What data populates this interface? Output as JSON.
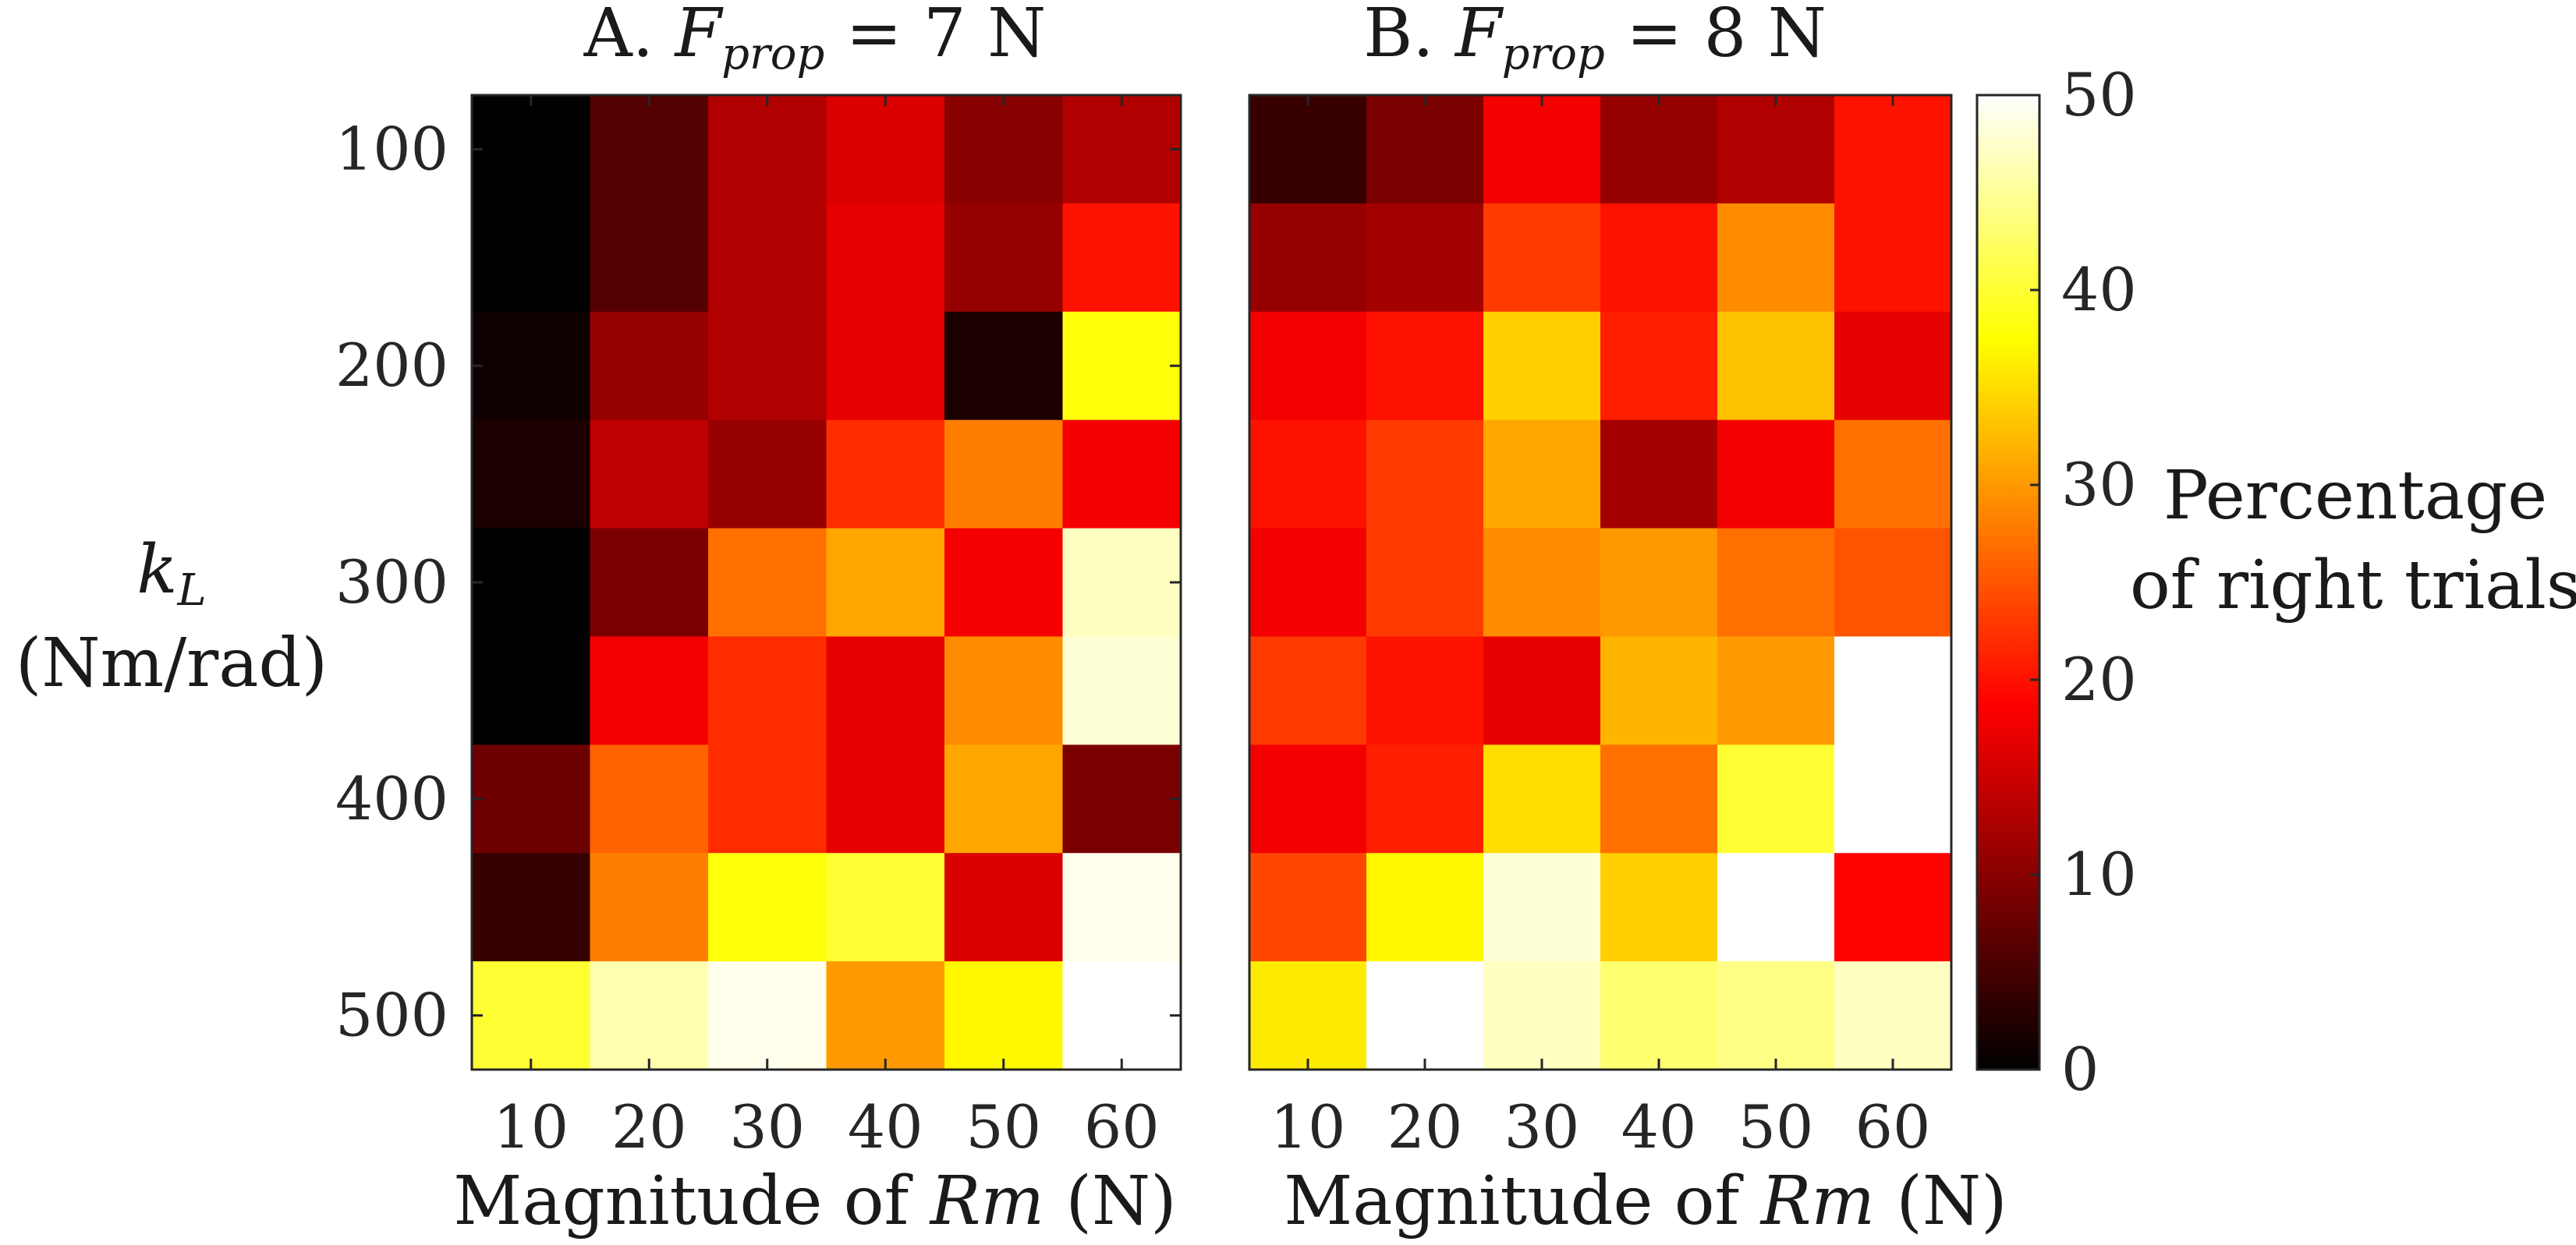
{
  "chart_data": {
    "type": "heatmap",
    "colormap": "hot",
    "colorbar": {
      "min": 0,
      "max": 50,
      "ticks": [
        0,
        10,
        20,
        30,
        40,
        50
      ],
      "label_line1": "Percentage",
      "label_line2": "of right trials"
    },
    "ylabel_symbol": "k",
    "ylabel_subscript": "L",
    "ylabel_unit": "(Nm/rad)",
    "y_categories": [
      100,
      150,
      200,
      250,
      300,
      350,
      400,
      450,
      500
    ],
    "y_tick_labels": [
      "100",
      "200",
      "300",
      "400",
      "500"
    ],
    "y_tick_rows": [
      0,
      2,
      4,
      6,
      8
    ],
    "x_categories": [
      "10",
      "20",
      "30",
      "40",
      "50",
      "60"
    ],
    "panels": [
      {
        "title_prefix": "A.",
        "title_symbol": "F",
        "title_subscript": "prop",
        "title_value": "= 7 N",
        "xlabel_text": "Magnitude of",
        "xlabel_symbol": "Rm",
        "xlabel_unit": "(N)",
        "values": [
          [
            0,
            6,
            13,
            16,
            10,
            13
          ],
          [
            0,
            6,
            13,
            17,
            11,
            20
          ],
          [
            1,
            11,
            13,
            17,
            2,
            38
          ],
          [
            2,
            14,
            11,
            22,
            28,
            18
          ],
          [
            0,
            9,
            27,
            31,
            18,
            47
          ],
          [
            0,
            18,
            22,
            17,
            29,
            48
          ],
          [
            8,
            26,
            22,
            17,
            31,
            9
          ],
          [
            4,
            28,
            38,
            40,
            16,
            49
          ],
          [
            40,
            46,
            49,
            30,
            37,
            50
          ]
        ]
      },
      {
        "title_prefix": "B.",
        "title_symbol": "F",
        "title_subscript": "prop",
        "title_value": "= 8 N",
        "xlabel_text": "Magnitude of",
        "xlabel_symbol": "Rm",
        "xlabel_unit": "(N)",
        "values": [
          [
            4,
            9,
            18,
            11,
            13,
            20
          ],
          [
            11,
            12,
            23,
            20,
            29,
            20
          ],
          [
            18,
            20,
            34,
            21,
            33,
            17
          ],
          [
            20,
            23,
            31,
            12,
            18,
            27
          ],
          [
            18,
            23,
            29,
            30,
            27,
            25
          ],
          [
            23,
            20,
            17,
            32,
            30,
            50
          ],
          [
            18,
            21,
            35,
            27,
            40,
            50
          ],
          [
            24,
            37,
            48,
            34,
            50,
            19
          ],
          [
            36,
            50,
            47,
            43,
            44,
            47
          ]
        ]
      }
    ]
  }
}
